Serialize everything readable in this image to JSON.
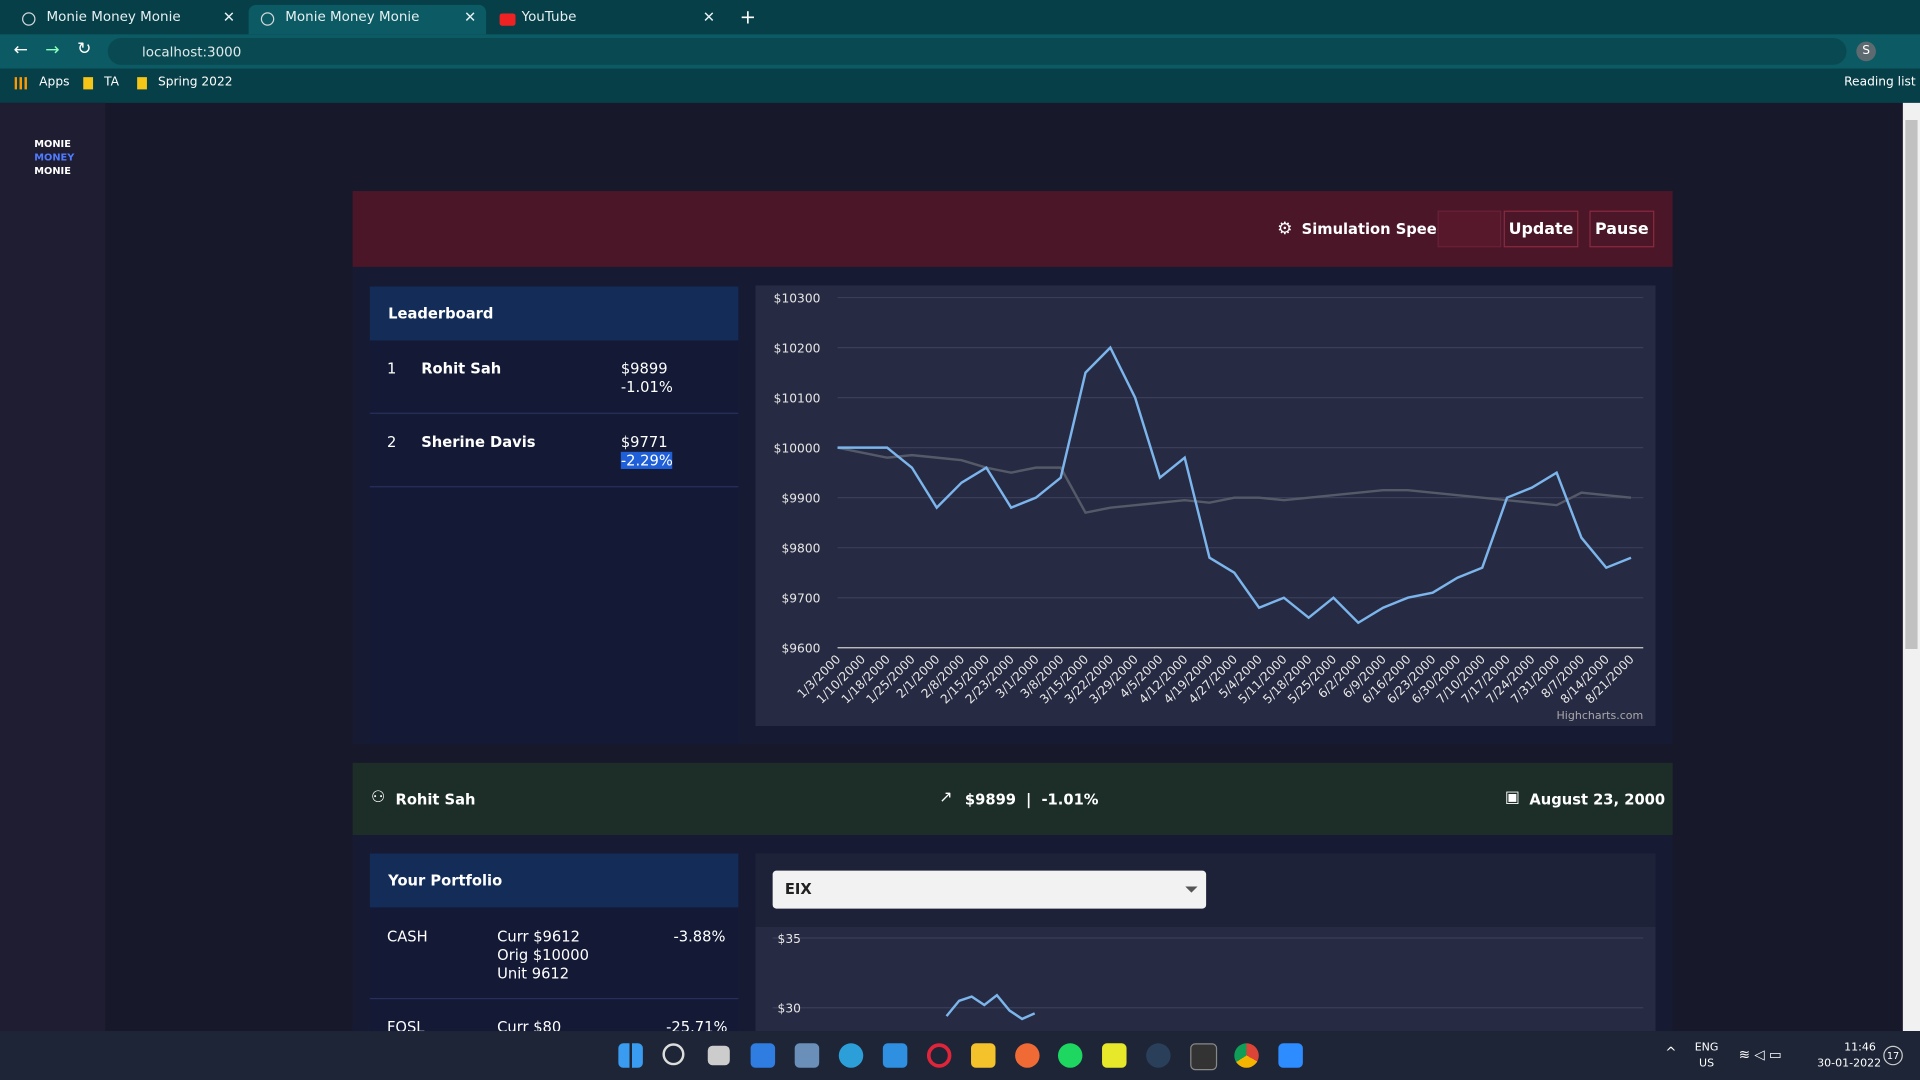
{
  "browser": {
    "tabs": [
      "Monie Money Monie",
      "Monie Money Monie",
      "YouTube"
    ],
    "url": "localhost:3000",
    "bookmarks": [
      "Apps",
      "TA",
      "Spring 2022"
    ],
    "reading_list": "Reading list",
    "profile": "S"
  },
  "sidebar": {
    "logo": [
      "MONIE",
      "MONEY",
      "MONIE"
    ]
  },
  "controls": {
    "label": "Simulation Speed",
    "buttons": [
      "Update",
      "Pause"
    ]
  },
  "leaderboard": {
    "title": "Leaderboard",
    "entries": [
      {
        "rank": "1",
        "name": "Rohit Sah",
        "value": "$9899",
        "change": "-1.01%"
      },
      {
        "rank": "2",
        "name": "Sherine Davis",
        "value": "$9771",
        "change": "-2.29%"
      }
    ]
  },
  "chart_data": {
    "type": "line",
    "credit": "Highcharts.com",
    "categories": [
      "1/3/2000",
      "1/10/2000",
      "1/18/2000",
      "1/25/2000",
      "2/1/2000",
      "2/8/2000",
      "2/15/2000",
      "2/23/2000",
      "3/1/2000",
      "3/8/2000",
      "3/15/2000",
      "3/22/2000",
      "3/29/2000",
      "4/5/2000",
      "4/12/2000",
      "4/19/2000",
      "4/27/2000",
      "5/4/2000",
      "5/11/2000",
      "5/18/2000",
      "5/25/2000",
      "6/2/2000",
      "6/9/2000",
      "6/16/2000",
      "6/23/2000",
      "6/30/2000",
      "7/10/2000",
      "7/17/2000",
      "7/24/2000",
      "7/31/2000",
      "8/7/2000",
      "8/14/2000",
      "8/21/2000"
    ],
    "series": [
      {
        "color": "#555a68",
        "values": [
          10000,
          9990,
          9980,
          9985,
          9980,
          9975,
          9960,
          9950,
          9960,
          9960,
          9870,
          9880,
          9885,
          9890,
          9895,
          9890,
          9900,
          9900,
          9895,
          9900,
          9905,
          9910,
          9915,
          9915,
          9910,
          9905,
          9900,
          9895,
          9890,
          9885,
          9910,
          9905,
          9900
        ]
      },
      {
        "color": "#7cb5ec",
        "values": [
          10000,
          10000,
          10000,
          9960,
          9880,
          9930,
          9960,
          9880,
          9900,
          9940,
          10150,
          10200,
          10100,
          9940,
          9980,
          9780,
          9750,
          9680,
          9700,
          9660,
          9700,
          9650,
          9680,
          9700,
          9710,
          9740,
          9760,
          9900,
          9920,
          9950,
          9820,
          9760,
          9780
        ]
      }
    ],
    "ylim": [
      9600,
      10300
    ],
    "yticks": [
      {
        "value": 9600,
        "label": "$9600"
      },
      {
        "value": 9700,
        "label": "$9700"
      },
      {
        "value": 9800,
        "label": "$9800"
      },
      {
        "value": 9900,
        "label": "$9900"
      },
      {
        "value": 10000,
        "label": "$10000"
      },
      {
        "value": 10100,
        "label": "$10100"
      },
      {
        "value": 10200,
        "label": "$10200"
      },
      {
        "value": 10300,
        "label": "$10300"
      }
    ],
    "grid": true
  },
  "status": {
    "user": "Rohit Sah",
    "value": "$9899",
    "separator": "|",
    "change": "-1.01%",
    "date": "August 23, 2000"
  },
  "portfolio": {
    "title": "Your Portfolio",
    "items": [
      {
        "symbol": "CASH",
        "lines": [
          "Curr $9612",
          "Orig $10000",
          "Unit 9612"
        ],
        "change": "-3.88%"
      },
      {
        "symbol": "FOSL",
        "lines": [
          "Curr $80"
        ],
        "change": "-25.71%"
      }
    ]
  },
  "stock": {
    "selected": "EIX",
    "chart": {
      "type": "line",
      "color": "#7cb5ec",
      "yticks": [
        {
          "value": 35,
          "label": "$35"
        },
        {
          "value": 30,
          "label": "$30"
        }
      ],
      "values": [
        29.4,
        30.5,
        30.8,
        30.2,
        30.9,
        29.8,
        29.2,
        29.6
      ]
    }
  },
  "taskbar": {
    "language": [
      "ENG",
      "US"
    ],
    "time": "11:46",
    "date": "30-01-2022",
    "badge": "17"
  }
}
